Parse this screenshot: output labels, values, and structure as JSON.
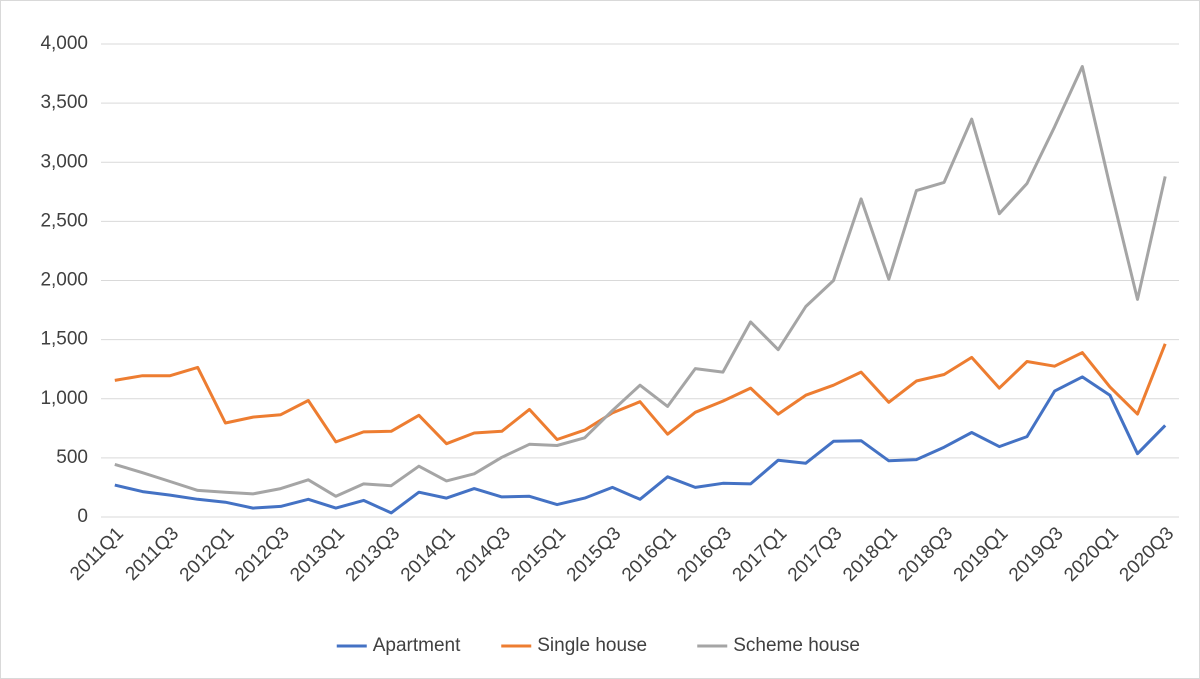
{
  "chart_data": {
    "type": "line",
    "categories": [
      "2011Q1",
      null,
      "2011Q3",
      null,
      "2012Q1",
      null,
      "2012Q3",
      null,
      "2013Q1",
      null,
      "2013Q3",
      null,
      "2014Q1",
      null,
      "2014Q3",
      null,
      "2015Q1",
      null,
      "2015Q3",
      null,
      "2016Q1",
      null,
      "2016Q3",
      null,
      "2017Q1",
      null,
      "2017Q3",
      null,
      "2018Q1",
      null,
      "2018Q3",
      null,
      "2019Q1",
      null,
      "2019Q3",
      null,
      "2020Q1",
      null,
      "2020Q3"
    ],
    "series": [
      {
        "name": "Apartment",
        "color": "#4472c4",
        "values": [
          270,
          215,
          185,
          150,
          125,
          75,
          90,
          150,
          75,
          140,
          35,
          210,
          160,
          240,
          170,
          175,
          105,
          160,
          250,
          150,
          340,
          250,
          285,
          280,
          480,
          455,
          640,
          645,
          475,
          485,
          590,
          715,
          595,
          680,
          1065,
          1185,
          1030,
          535,
          775
        ]
      },
      {
        "name": "Single house",
        "color": "#ed7d31",
        "values": [
          1155,
          1195,
          1195,
          1265,
          795,
          845,
          865,
          985,
          635,
          720,
          725,
          860,
          620,
          710,
          725,
          910,
          655,
          735,
          880,
          975,
          700,
          885,
          980,
          1090,
          870,
          1030,
          1115,
          1225,
          970,
          1150,
          1205,
          1350,
          1090,
          1315,
          1275,
          1390,
          1100,
          870,
          1465
        ]
      },
      {
        "name": "Scheme house",
        "color": "#a5a5a5",
        "values": [
          445,
          375,
          300,
          225,
          210,
          195,
          240,
          315,
          175,
          280,
          265,
          430,
          305,
          365,
          505,
          615,
          605,
          670,
          900,
          1115,
          935,
          1255,
          1225,
          1650,
          1415,
          1780,
          2000,
          2690,
          2010,
          2760,
          2830,
          3365,
          2565,
          2820,
          3300,
          3810,
          2800,
          1840,
          2880
        ]
      }
    ],
    "ylim": [
      0,
      4000
    ],
    "yticks": [
      0,
      500,
      {
        "value": 1000,
        "label": "1,000"
      },
      {
        "value": 1500,
        "label": "1,500"
      },
      {
        "value": 2000,
        "label": "2,000"
      },
      {
        "value": 2500,
        "label": "2,500"
      },
      {
        "value": 3000,
        "label": "3,000"
      },
      {
        "value": 3500,
        "label": "3,500"
      },
      {
        "value": 4000,
        "label": "4,000"
      }
    ],
    "grid": true,
    "legend": "bottom"
  }
}
